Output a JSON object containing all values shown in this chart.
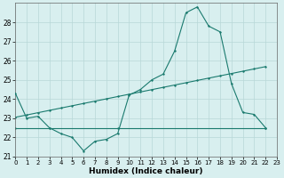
{
  "line1_x": [
    0,
    1,
    2,
    3,
    4,
    5,
    6,
    7,
    8,
    9,
    10,
    11,
    12,
    13,
    14,
    15,
    16,
    17,
    18,
    19,
    20,
    21,
    22
  ],
  "line1_y": [
    24.3,
    23.0,
    23.1,
    22.5,
    22.2,
    22.0,
    21.3,
    21.8,
    21.9,
    22.2,
    24.2,
    24.5,
    25.0,
    25.3,
    26.5,
    28.5,
    28.8,
    27.8,
    27.5,
    24.8,
    23.3,
    23.2,
    22.5
  ],
  "line2_x": [
    0,
    1,
    2,
    3,
    4,
    5,
    6,
    7,
    8,
    9,
    10,
    11,
    12,
    13,
    14,
    15,
    16,
    17,
    18,
    19,
    20,
    21,
    22
  ],
  "line2_y": [
    23.05,
    23.17,
    23.29,
    23.41,
    23.53,
    23.65,
    23.77,
    23.89,
    24.01,
    24.13,
    24.25,
    24.37,
    24.49,
    24.61,
    24.73,
    24.85,
    24.97,
    25.09,
    25.21,
    25.33,
    25.45,
    25.57,
    25.69
  ],
  "line3_x": [
    0,
    3,
    9,
    22
  ],
  "line3_y": [
    22.5,
    22.5,
    22.5,
    22.5
  ],
  "line_color": "#1a7a6e",
  "bg_color": "#d8efef",
  "grid_color": "#b8d8d8",
  "xlabel": "Humidex (Indice chaleur)",
  "ylim": [
    21.0,
    29.0
  ],
  "xlim": [
    0,
    23
  ],
  "yticks": [
    21,
    22,
    23,
    24,
    25,
    26,
    27,
    28
  ],
  "xticks": [
    0,
    1,
    2,
    3,
    4,
    5,
    6,
    7,
    8,
    9,
    10,
    11,
    12,
    13,
    14,
    15,
    16,
    17,
    18,
    19,
    20,
    21,
    22,
    23
  ]
}
